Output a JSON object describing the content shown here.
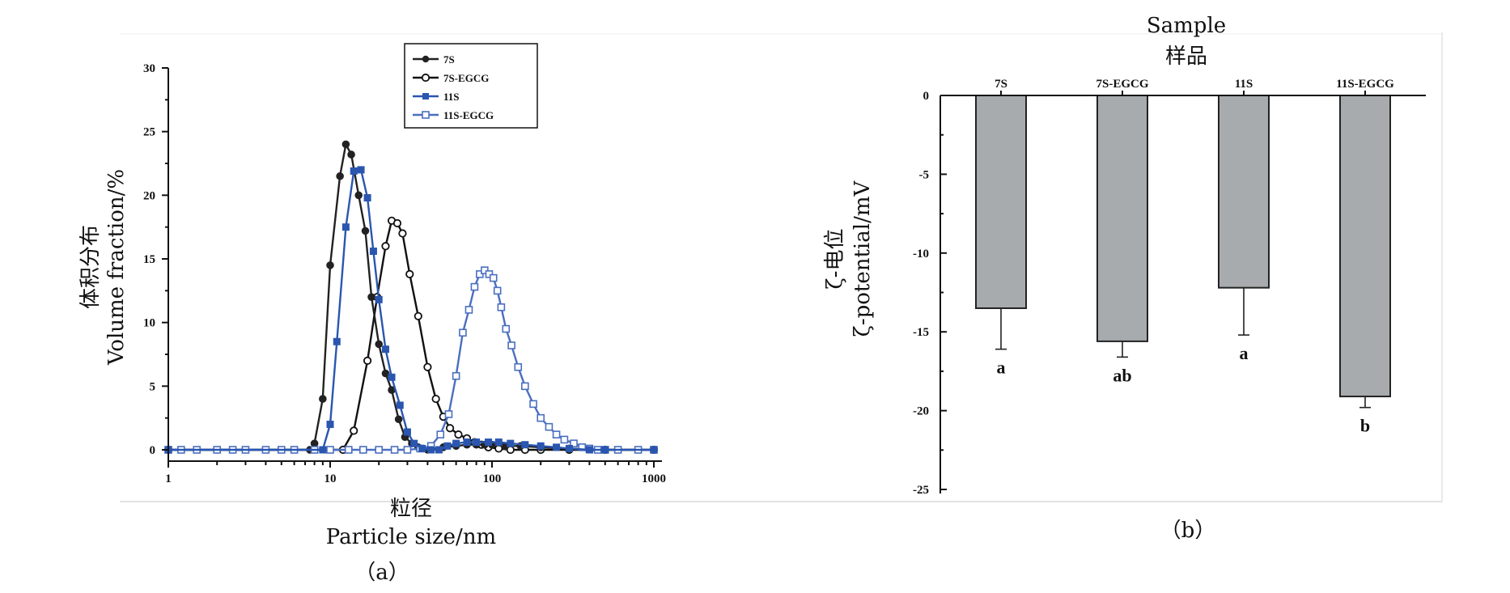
{
  "chart_data": [
    {
      "panel_label": "（a）",
      "type": "line",
      "xscale": "log",
      "xlim": [
        1,
        1000
      ],
      "ylim": [
        0,
        30
      ],
      "xticks": [
        "1",
        "10",
        "100",
        "1000"
      ],
      "yticks": [
        "0",
        "5",
        "10",
        "15",
        "20",
        "25",
        "30"
      ],
      "xlabel_cn": "粒径",
      "xlabel": "Particle size/nm",
      "ylabel_cn": "体积分布",
      "ylabel": "Volume fraction/%",
      "legend_position": "top-center",
      "colors": {
        "7S": "#222222",
        "7S-EGCG": "#111111",
        "11S": "#2a56b0",
        "11S-EGCG": "#4a6fc0"
      },
      "series": [
        {
          "name": "7S",
          "marker": "filled-circle",
          "x": [
            1,
            7.5,
            8.0,
            9.0,
            10.0,
            11.5,
            12.5,
            13.5,
            15.0,
            16.5,
            18.0,
            20.0,
            22.0,
            24.0,
            26.5,
            29.0,
            32,
            35,
            40,
            50,
            60,
            70,
            80,
            90,
            100,
            120,
            150,
            200,
            300,
            500,
            1000
          ],
          "y": [
            0,
            0,
            0.5,
            4.0,
            14.5,
            21.5,
            24.0,
            23.2,
            20.0,
            17.2,
            12.0,
            8.3,
            6.0,
            4.7,
            2.4,
            1.0,
            0.5,
            0.2,
            0,
            0.2,
            0.3,
            0.4,
            0.4,
            0.4,
            0.4,
            0.3,
            0.3,
            0.2,
            0.1,
            0,
            0
          ]
        },
        {
          "name": "7S-EGCG",
          "marker": "open-circle",
          "x": [
            1,
            12,
            14,
            17,
            19.5,
            22,
            24,
            26,
            28,
            31,
            35,
            40,
            45,
            50,
            55,
            62,
            70,
            78,
            86,
            95,
            110,
            130,
            160,
            200,
            300,
            500,
            1000
          ],
          "y": [
            0,
            0,
            1.5,
            7.0,
            12.0,
            16.0,
            18.0,
            17.8,
            17.0,
            13.8,
            10.5,
            6.5,
            4.0,
            2.6,
            1.7,
            1.2,
            0.9,
            0.6,
            0.4,
            0.2,
            0.1,
            0,
            0,
            0,
            0,
            0,
            0
          ]
        },
        {
          "name": "11S",
          "marker": "filled-square",
          "x": [
            1,
            9,
            10,
            11,
            12.5,
            14,
            15.5,
            17,
            18.5,
            20,
            22,
            24,
            27,
            30,
            33,
            37,
            42,
            47,
            53,
            60,
            70,
            80,
            95,
            110,
            130,
            160,
            200,
            250,
            300,
            400,
            500,
            1000
          ],
          "y": [
            0,
            0,
            2.0,
            8.5,
            17.5,
            21.9,
            22.0,
            19.8,
            15.6,
            11.8,
            7.9,
            5.7,
            3.5,
            1.4,
            0.5,
            0.1,
            0,
            0,
            0.3,
            0.5,
            0.6,
            0.6,
            0.6,
            0.6,
            0.5,
            0.4,
            0.3,
            0.2,
            0.1,
            0,
            0,
            0
          ]
        },
        {
          "name": "11S-EGCG",
          "marker": "open-square",
          "x": [
            1,
            1.2,
            1.5,
            2,
            2.5,
            3,
            4,
            5,
            6,
            8,
            10,
            13,
            16,
            20,
            25,
            30,
            36,
            42,
            48,
            54,
            60,
            66,
            72,
            78,
            84,
            90,
            96,
            102,
            108,
            114,
            122,
            132,
            145,
            160,
            180,
            200,
            225,
            250,
            280,
            320,
            360,
            400,
            450,
            500,
            600,
            800,
            1000
          ],
          "y": [
            0,
            0,
            0,
            0,
            0,
            0,
            0,
            0,
            0,
            0,
            0,
            0,
            0,
            0,
            0,
            0,
            0.1,
            0.3,
            1.2,
            2.8,
            5.8,
            9.2,
            11.0,
            12.8,
            13.8,
            14.1,
            13.8,
            13.5,
            12.5,
            11.2,
            9.5,
            8.2,
            6.5,
            5.0,
            3.6,
            2.5,
            1.8,
            1.2,
            0.8,
            0.5,
            0.2,
            0.1,
            0,
            0,
            0,
            0,
            0
          ]
        }
      ]
    },
    {
      "panel_label": "（b）",
      "type": "bar",
      "title": "Sample",
      "title_cn": "样品",
      "ylabel_cn": "ζ-电位",
      "ylabel": "ζ-potential/mV",
      "ylim": [
        -25,
        0
      ],
      "yticks": [
        "0",
        "-5",
        "-10",
        "-15",
        "-20",
        "-25"
      ],
      "x_axis_position": "top",
      "categories": [
        "7S",
        "7S-EGCG",
        "11S",
        "11S-EGCG"
      ],
      "values": [
        -13.5,
        -15.6,
        -12.2,
        -19.1
      ],
      "errors": [
        2.6,
        1.0,
        3.0,
        0.7
      ],
      "significance": [
        "a",
        "ab",
        "a",
        "b"
      ],
      "bar_color": "#a8abad"
    }
  ]
}
